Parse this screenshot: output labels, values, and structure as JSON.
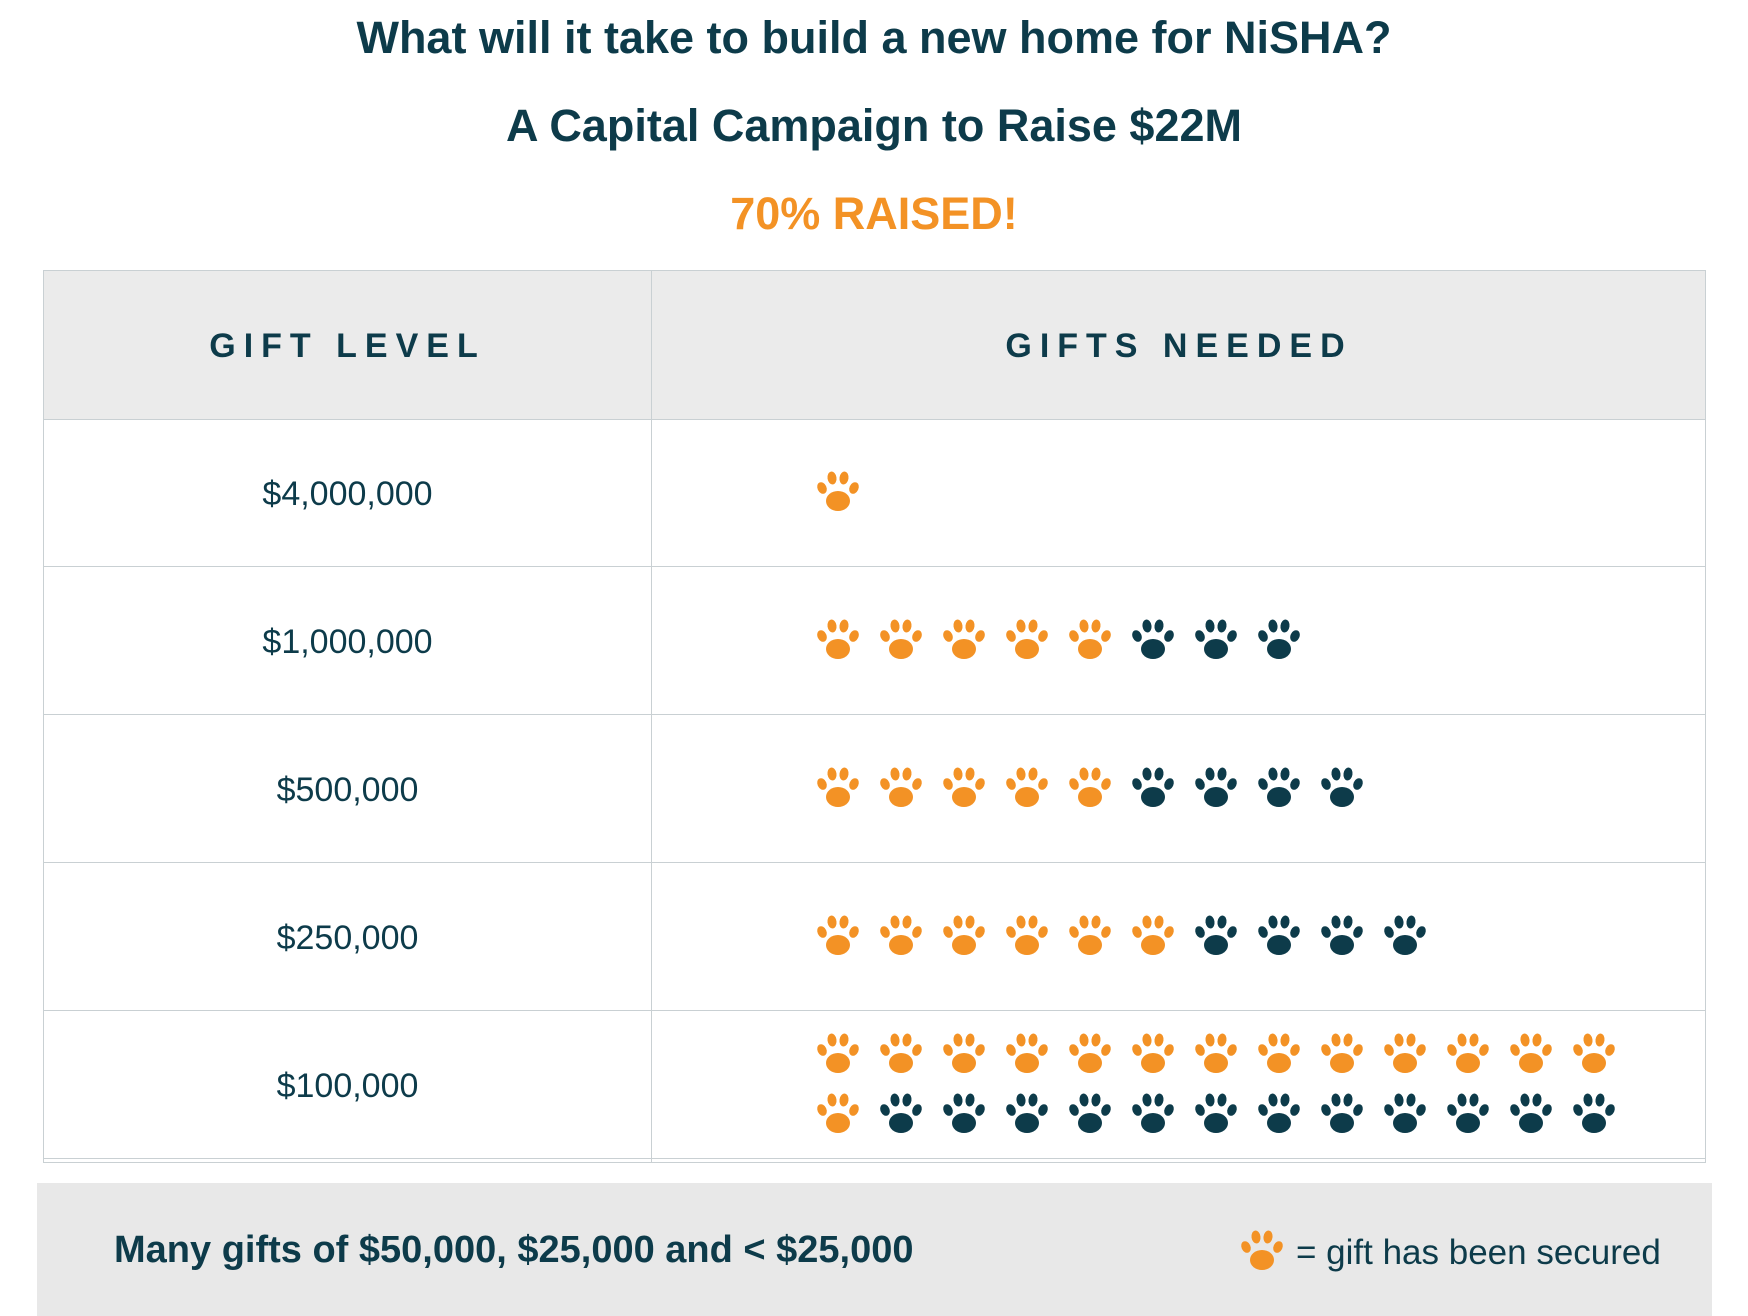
{
  "header": {
    "title": "What will it take to build a new home for NiSHA?",
    "subtitle": "A Capital Campaign to Raise $22M",
    "progress_text": "70% RAISED!"
  },
  "table": {
    "columns": [
      "GIFT LEVEL",
      "GIFTS NEEDED"
    ],
    "rows": [
      {
        "level": "$4,000,000",
        "needed": 1,
        "secured": 1
      },
      {
        "level": "$1,000,000",
        "needed": 8,
        "secured": 5
      },
      {
        "level": "$500,000",
        "needed": 9,
        "secured": 5
      },
      {
        "level": "$250,000",
        "needed": 10,
        "secured": 6
      },
      {
        "level": "$100,000",
        "needed": 26,
        "secured": 14
      }
    ]
  },
  "footer": {
    "note": "Many gifts of $50,000, $25,000 and < $25,000",
    "legend_label": "= gift has been secured",
    "legend_icon": "paw-icon"
  },
  "colors": {
    "secured": "#f39225",
    "unsecured": "#0d3b4a",
    "text": "#0d3b4a",
    "header_bg": "#ebebeb"
  }
}
